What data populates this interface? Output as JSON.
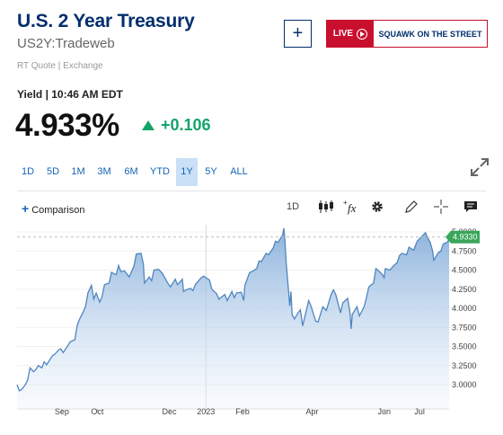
{
  "header": {
    "title": "U.S. 2 Year Treasury",
    "symbol": "US2Y:Tradeweb",
    "quote_source": "RT Quote | Exchange",
    "add_label": "+",
    "live_label": "LIVE",
    "squawk_label": "SQUAWK ON THE STREET"
  },
  "quote": {
    "yield_label": "Yield | 10:46 AM EDT",
    "price": "4.933%",
    "change": "+0.106"
  },
  "ranges": [
    {
      "label": "1D"
    },
    {
      "label": "5D"
    },
    {
      "label": "1M"
    },
    {
      "label": "3M"
    },
    {
      "label": "6M"
    },
    {
      "label": "YTD"
    },
    {
      "label": "1Y",
      "active": true
    },
    {
      "label": "5Y"
    },
    {
      "label": "ALL"
    }
  ],
  "toolbar": {
    "comparison_label": "Comparison",
    "interval_label": "1D",
    "fx_label": "fx"
  },
  "colors": {
    "accent": "#1464b4",
    "up": "#13a46a",
    "live_red": "#c8102e",
    "line": "#4f86c0"
  },
  "chart_data": {
    "type": "area",
    "y_ticks": [
      "5.0000",
      "4.7500",
      "4.5000",
      "4.2500",
      "4.0000",
      "3.7500",
      "3.5000",
      "3.2500",
      "3.0000"
    ],
    "x_ticks": [
      "Sep",
      "Oct",
      "Dec",
      "2023",
      "Feb",
      "Apr",
      "Jun",
      "Jul"
    ],
    "ylim": [
      2.9,
      5.05
    ],
    "last_value_label": "4.9330",
    "last_value": 4.933,
    "grid": true,
    "points": [
      [
        "2022-07-25",
        3.0
      ],
      [
        "2022-07-27",
        2.92
      ],
      [
        "2022-07-29",
        2.94
      ],
      [
        "2022-08-01",
        3.0
      ],
      [
        "2022-08-03",
        3.06
      ],
      [
        "2022-08-05",
        3.22
      ],
      [
        "2022-08-08",
        3.17
      ],
      [
        "2022-08-10",
        3.2
      ],
      [
        "2022-08-12",
        3.25
      ],
      [
        "2022-08-15",
        3.22
      ],
      [
        "2022-08-17",
        3.3
      ],
      [
        "2022-08-19",
        3.26
      ],
      [
        "2022-08-22",
        3.33
      ],
      [
        "2022-08-24",
        3.38
      ],
      [
        "2022-08-26",
        3.4
      ],
      [
        "2022-08-29",
        3.45
      ],
      [
        "2022-08-31",
        3.47
      ],
      [
        "2022-09-02",
        3.42
      ],
      [
        "2022-09-06",
        3.51
      ],
      [
        "2022-09-08",
        3.56
      ],
      [
        "2022-09-12",
        3.59
      ],
      [
        "2022-09-14",
        3.78
      ],
      [
        "2022-09-16",
        3.86
      ],
      [
        "2022-09-19",
        3.95
      ],
      [
        "2022-09-21",
        4.02
      ],
      [
        "2022-09-23",
        4.2
      ],
      [
        "2022-09-26",
        4.3
      ],
      [
        "2022-09-28",
        4.12
      ],
      [
        "2022-09-30",
        4.2
      ],
      [
        "2022-10-03",
        4.08
      ],
      [
        "2022-10-05",
        4.15
      ],
      [
        "2022-10-07",
        4.31
      ],
      [
        "2022-10-11",
        4.33
      ],
      [
        "2022-10-13",
        4.47
      ],
      [
        "2022-10-17",
        4.44
      ],
      [
        "2022-10-19",
        4.56
      ],
      [
        "2022-10-21",
        4.48
      ],
      [
        "2022-10-24",
        4.49
      ],
      [
        "2022-10-26",
        4.45
      ],
      [
        "2022-10-28",
        4.41
      ],
      [
        "2022-11-01",
        4.55
      ],
      [
        "2022-11-03",
        4.71
      ],
      [
        "2022-11-07",
        4.72
      ],
      [
        "2022-11-09",
        4.58
      ],
      [
        "2022-11-10",
        4.33
      ],
      [
        "2022-11-14",
        4.41
      ],
      [
        "2022-11-16",
        4.36
      ],
      [
        "2022-11-18",
        4.5
      ],
      [
        "2022-11-22",
        4.51
      ],
      [
        "2022-11-25",
        4.46
      ],
      [
        "2022-11-30",
        4.32
      ],
      [
        "2022-12-02",
        4.28
      ],
      [
        "2022-12-06",
        4.38
      ],
      [
        "2022-12-08",
        4.31
      ],
      [
        "2022-12-12",
        4.38
      ],
      [
        "2022-12-13",
        4.22
      ],
      [
        "2022-12-15",
        4.24
      ],
      [
        "2022-12-19",
        4.26
      ],
      [
        "2022-12-21",
        4.23
      ],
      [
        "2022-12-23",
        4.31
      ],
      [
        "2022-12-28",
        4.4
      ],
      [
        "2022-12-30",
        4.42
      ],
      [
        "2023-01-04",
        4.37
      ],
      [
        "2023-01-06",
        4.25
      ],
      [
        "2023-01-10",
        4.19
      ],
      [
        "2023-01-12",
        4.12
      ],
      [
        "2023-01-17",
        4.18
      ],
      [
        "2023-01-19",
        4.1
      ],
      [
        "2023-01-23",
        4.22
      ],
      [
        "2023-01-25",
        4.14
      ],
      [
        "2023-01-27",
        4.2
      ],
      [
        "2023-01-31",
        4.21
      ],
      [
        "2023-02-02",
        4.1
      ],
      [
        "2023-02-03",
        4.3
      ],
      [
        "2023-02-07",
        4.47
      ],
      [
        "2023-02-09",
        4.48
      ],
      [
        "2023-02-13",
        4.52
      ],
      [
        "2023-02-15",
        4.62
      ],
      [
        "2023-02-17",
        4.61
      ],
      [
        "2023-02-21",
        4.72
      ],
      [
        "2023-02-23",
        4.7
      ],
      [
        "2023-02-27",
        4.79
      ],
      [
        "2023-03-01",
        4.88
      ],
      [
        "2023-03-03",
        4.86
      ],
      [
        "2023-03-07",
        4.96
      ],
      [
        "2023-03-08",
        5.05
      ],
      [
        "2023-03-09",
        4.87
      ],
      [
        "2023-03-10",
        4.6
      ],
      [
        "2023-03-13",
        4.03
      ],
      [
        "2023-03-14",
        4.22
      ],
      [
        "2023-03-15",
        3.92
      ],
      [
        "2023-03-17",
        3.86
      ],
      [
        "2023-03-20",
        3.94
      ],
      [
        "2023-03-22",
        3.98
      ],
      [
        "2023-03-24",
        3.77
      ],
      [
        "2023-03-27",
        3.97
      ],
      [
        "2023-03-29",
        4.1
      ],
      [
        "2023-03-31",
        4.03
      ],
      [
        "2023-04-04",
        3.83
      ],
      [
        "2023-04-06",
        3.82
      ],
      [
        "2023-04-10",
        4.02
      ],
      [
        "2023-04-13",
        3.97
      ],
      [
        "2023-04-17",
        4.18
      ],
      [
        "2023-04-19",
        4.24
      ],
      [
        "2023-04-21",
        4.18
      ],
      [
        "2023-04-25",
        3.94
      ],
      [
        "2023-04-27",
        4.07
      ],
      [
        "2023-05-01",
        4.13
      ],
      [
        "2023-05-03",
        3.95
      ],
      [
        "2023-05-04",
        3.73
      ],
      [
        "2023-05-05",
        3.92
      ],
      [
        "2023-05-09",
        4.02
      ],
      [
        "2023-05-11",
        3.9
      ],
      [
        "2023-05-15",
        4.02
      ],
      [
        "2023-05-17",
        4.14
      ],
      [
        "2023-05-19",
        4.28
      ],
      [
        "2023-05-23",
        4.33
      ],
      [
        "2023-05-25",
        4.52
      ],
      [
        "2023-05-30",
        4.45
      ],
      [
        "2023-06-01",
        4.4
      ],
      [
        "2023-06-02",
        4.52
      ],
      [
        "2023-06-06",
        4.5
      ],
      [
        "2023-06-08",
        4.54
      ],
      [
        "2023-06-12",
        4.6
      ],
      [
        "2023-06-14",
        4.69
      ],
      [
        "2023-06-16",
        4.72
      ],
      [
        "2023-06-20",
        4.7
      ],
      [
        "2023-06-22",
        4.8
      ],
      [
        "2023-06-26",
        4.76
      ],
      [
        "2023-06-29",
        4.88
      ],
      [
        "2023-07-03",
        4.94
      ],
      [
        "2023-07-06",
        4.99
      ],
      [
        "2023-07-07",
        4.95
      ],
      [
        "2023-07-10",
        4.86
      ],
      [
        "2023-07-12",
        4.75
      ],
      [
        "2023-07-13",
        4.63
      ],
      [
        "2023-07-17",
        4.73
      ],
      [
        "2023-07-19",
        4.75
      ],
      [
        "2023-07-21",
        4.84
      ],
      [
        "2023-07-25",
        4.87
      ],
      [
        "2023-07-26",
        4.93
      ]
    ]
  }
}
